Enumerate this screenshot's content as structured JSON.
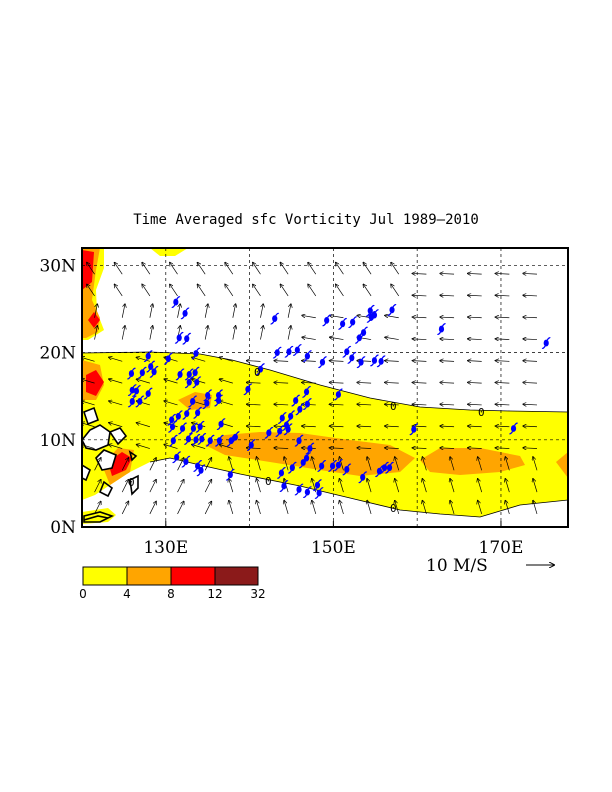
{
  "title": "Time Averaged sfc Vorticity  Jul 1989–2010",
  "colors": {
    "level1": "#ffff00",
    "level2": "#ffa500",
    "level3": "#ff0000",
    "level4": "#8b1a1a",
    "storm": "#0000ff",
    "coast": "#000000"
  },
  "map": {
    "lon_range": [
      120,
      178
    ],
    "lat_range": [
      0,
      32
    ],
    "lon_ticks": [
      {
        "value": 130,
        "label": "130E"
      },
      {
        "value": 150,
        "label": "150E"
      },
      {
        "value": 170,
        "label": "170E"
      }
    ],
    "lat_ticks": [
      {
        "value": 0,
        "label": "0N"
      },
      {
        "value": 10,
        "label": "10N"
      },
      {
        "value": 20,
        "label": "20N"
      },
      {
        "value": 30,
        "label": "30N"
      }
    ],
    "contour_label": "0",
    "storm_icon": "typhoon-symbol-icon",
    "storm_positions": [
      [
        131.6,
        21.7
      ],
      [
        132.5,
        21.6
      ],
      [
        132.3,
        24.5
      ],
      [
        131.2,
        25.8
      ],
      [
        133.6,
        19.9
      ],
      [
        130.3,
        19.3
      ],
      [
        127.9,
        19.6
      ],
      [
        128.2,
        18.4
      ],
      [
        128.6,
        17.8
      ],
      [
        127.2,
        17.7
      ],
      [
        125.9,
        17.6
      ],
      [
        126.0,
        15.7
      ],
      [
        126.5,
        15.6
      ],
      [
        126.9,
        14.4
      ],
      [
        127.9,
        15.3
      ],
      [
        126.0,
        14.4
      ],
      [
        131.7,
        17.5
      ],
      [
        132.8,
        17.5
      ],
      [
        133.5,
        17.7
      ],
      [
        132.8,
        16.6
      ],
      [
        133.7,
        16.6
      ],
      [
        135.0,
        15.1
      ],
      [
        136.3,
        15.1
      ],
      [
        136.3,
        14.5
      ],
      [
        134.9,
        14.2
      ],
      [
        133.2,
        14.4
      ],
      [
        133.8,
        13.1
      ],
      [
        132.5,
        13.0
      ],
      [
        131.5,
        12.7
      ],
      [
        130.7,
        12.3
      ],
      [
        130.8,
        11.5
      ],
      [
        132.0,
        11.3
      ],
      [
        133.3,
        11.3
      ],
      [
        134.1,
        11.5
      ],
      [
        136.6,
        11.8
      ],
      [
        134.3,
        10.1
      ],
      [
        133.6,
        10.0
      ],
      [
        132.7,
        10.1
      ],
      [
        135.3,
        9.9
      ],
      [
        136.4,
        9.9
      ],
      [
        137.8,
        9.9
      ],
      [
        138.3,
        10.3
      ],
      [
        130.9,
        9.9
      ],
      [
        131.3,
        8.0
      ],
      [
        132.4,
        7.5
      ],
      [
        133.8,
        7.0
      ],
      [
        134.2,
        6.5
      ],
      [
        137.7,
        6.0
      ],
      [
        139.8,
        15.8
      ],
      [
        141.3,
        18.1
      ],
      [
        143.3,
        20.0
      ],
      [
        144.7,
        20.1
      ],
      [
        145.7,
        20.3
      ],
      [
        146.9,
        19.6
      ],
      [
        148.7,
        18.9
      ],
      [
        151.6,
        20.1
      ],
      [
        152.2,
        19.4
      ],
      [
        153.3,
        18.9
      ],
      [
        154.9,
        19.1
      ],
      [
        155.7,
        19.0
      ],
      [
        153.1,
        21.7
      ],
      [
        152.3,
        23.5
      ],
      [
        151.1,
        23.3
      ],
      [
        149.2,
        23.7
      ],
      [
        153.6,
        22.3
      ],
      [
        154.4,
        24.8
      ],
      [
        154.5,
        24.1
      ],
      [
        154.9,
        24.3
      ],
      [
        157.0,
        24.9
      ],
      [
        162.9,
        22.7
      ],
      [
        175.4,
        21.1
      ],
      [
        143.0,
        23.9
      ],
      [
        150.6,
        15.2
      ],
      [
        146.8,
        15.5
      ],
      [
        145.5,
        14.5
      ],
      [
        146.9,
        14.1
      ],
      [
        146.0,
        13.5
      ],
      [
        144.9,
        12.7
      ],
      [
        143.9,
        12.5
      ],
      [
        144.4,
        11.7
      ],
      [
        144.6,
        11.2
      ],
      [
        143.6,
        11.0
      ],
      [
        142.3,
        10.8
      ],
      [
        145.9,
        9.9
      ],
      [
        147.2,
        9.0
      ],
      [
        146.8,
        7.9
      ],
      [
        145.1,
        6.8
      ],
      [
        143.8,
        6.2
      ],
      [
        146.4,
        7.4
      ],
      [
        148.6,
        7.0
      ],
      [
        149.9,
        7.0
      ],
      [
        150.6,
        7.1
      ],
      [
        151.6,
        6.6
      ],
      [
        153.5,
        5.7
      ],
      [
        155.5,
        6.4
      ],
      [
        156.1,
        6.8
      ],
      [
        156.7,
        6.8
      ],
      [
        159.6,
        11.2
      ],
      [
        171.5,
        11.3
      ],
      [
        140.2,
        9.4
      ],
      [
        148.1,
        4.8
      ],
      [
        144.1,
        4.7
      ],
      [
        145.9,
        4.3
      ],
      [
        146.9,
        4.0
      ],
      [
        148.3,
        3.9
      ]
    ]
  },
  "colorbar": {
    "ticks": [
      "0",
      "4",
      "8",
      "12",
      "32"
    ]
  },
  "vector_scale_label": "10 M/S"
}
